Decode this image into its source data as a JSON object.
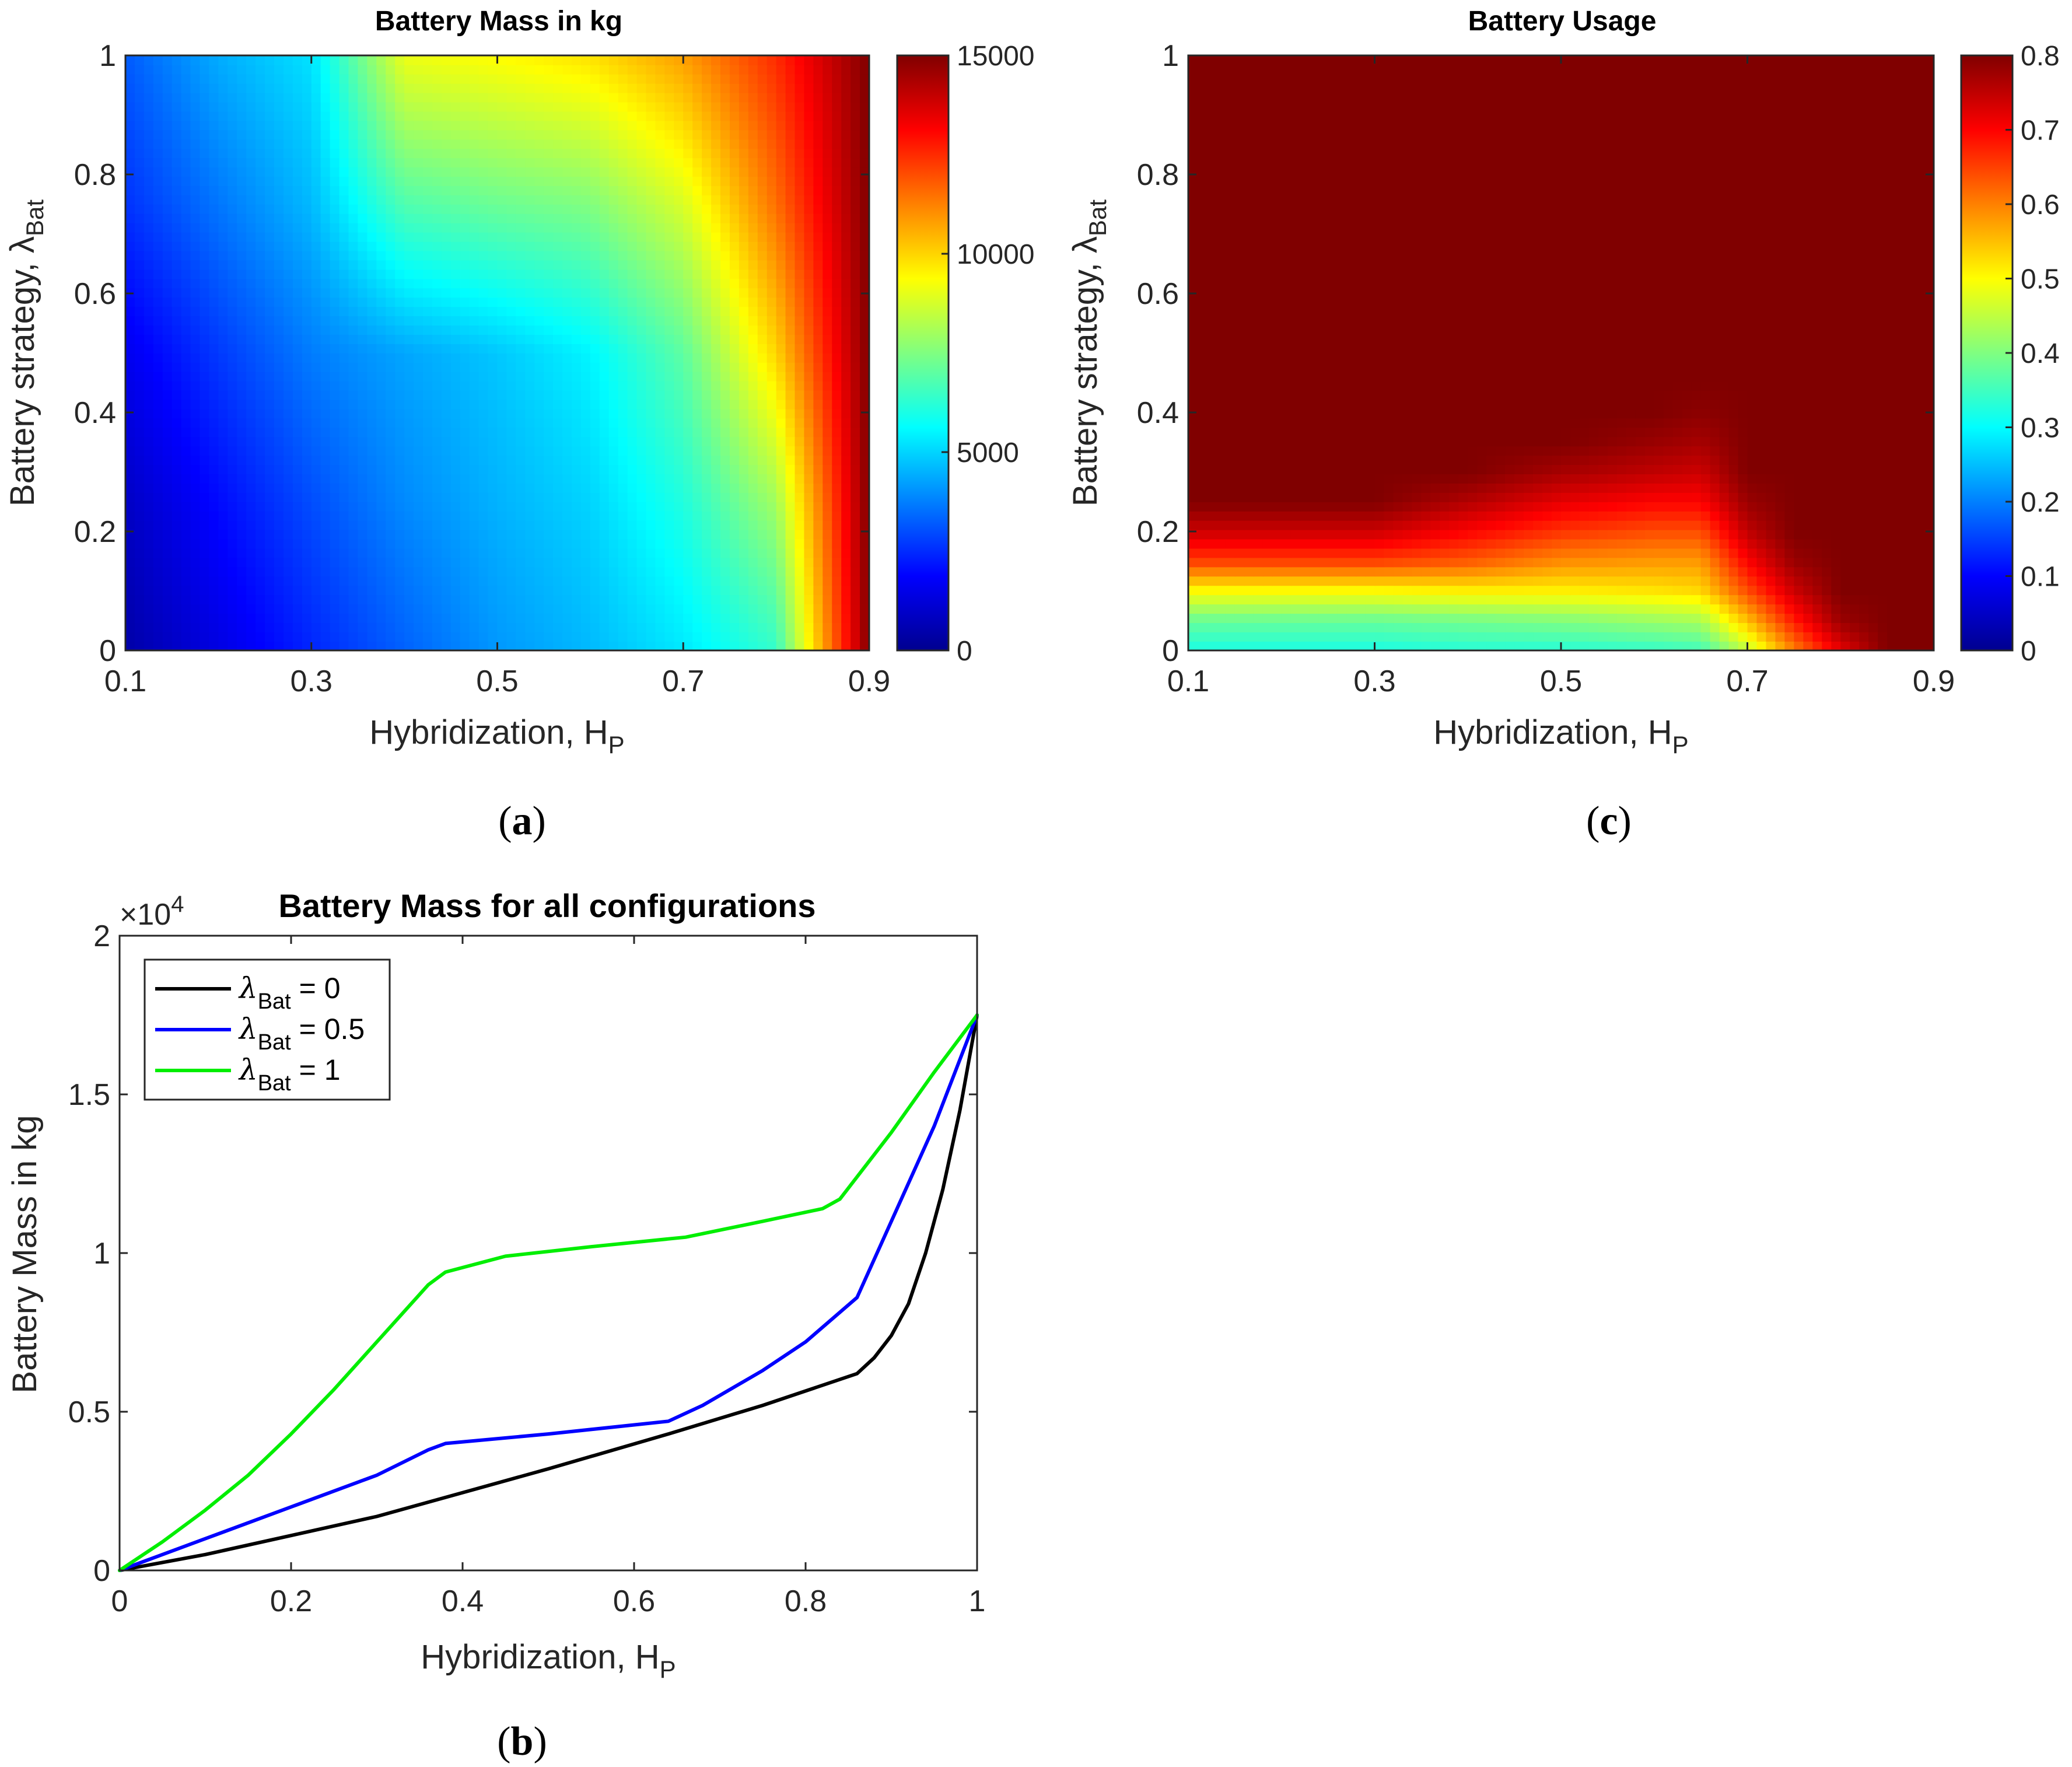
{
  "colorbar_colors": [
    "#00008f",
    "#0000ff",
    "#0080ff",
    "#00ffff",
    "#80ff80",
    "#ffff00",
    "#ff8000",
    "#ff0000",
    "#800000"
  ],
  "panel_a": {
    "label": "a",
    "chart_data": {
      "type": "heatmap",
      "title": "Battery Mass in kg",
      "xlabel": "Hybridization, H",
      "xlabel_sub": "P",
      "ylabel": "Battery strategy, λ",
      "ylabel_sub": "Bat",
      "xlim": [
        0.1,
        0.9
      ],
      "ylim": [
        0,
        1
      ],
      "xticks": [
        "0.1",
        "0.3",
        "0.5",
        "0.7",
        "0.9"
      ],
      "xtick_values": [
        0.1,
        0.3,
        0.5,
        0.7,
        0.9
      ],
      "yticks": [
        "0",
        "0.2",
        "0.4",
        "0.6",
        "0.8",
        "1"
      ],
      "ytick_values": [
        0,
        0.2,
        0.4,
        0.6,
        0.8,
        1
      ],
      "colorbar": {
        "min": 0,
        "max": 15000,
        "ticks": [
          "0",
          "5000",
          "10000",
          "15000"
        ],
        "tick_values": [
          0,
          5000,
          10000,
          15000
        ]
      },
      "x": [
        0.1,
        0.2,
        0.3,
        0.4,
        0.5,
        0.6,
        0.7,
        0.8,
        0.9
      ],
      "y": [
        0,
        0.25,
        0.5,
        0.75,
        1
      ],
      "z": [
        [
          400,
          1400,
          2400,
          3300,
          4100,
          4600,
          5300,
          6400,
          15000
        ],
        [
          900,
          2000,
          3000,
          3900,
          4500,
          5000,
          6100,
          8000,
          15000
        ],
        [
          1600,
          2700,
          3700,
          4300,
          4800,
          5500,
          7000,
          10000,
          15000
        ],
        [
          2600,
          3600,
          4600,
          6800,
          7200,
          7500,
          8800,
          11500,
          15000
        ],
        [
          3200,
          4400,
          5200,
          9100,
          9400,
          9800,
          10800,
          12500,
          15000
        ]
      ]
    }
  },
  "panel_c": {
    "label": "c",
    "chart_data": {
      "type": "heatmap",
      "title": "Battery Usage",
      "xlabel": "Hybridization, H",
      "xlabel_sub": "P",
      "ylabel": "Battery strategy, λ",
      "ylabel_sub": "Bat",
      "xlim": [
        0.1,
        0.9
      ],
      "ylim": [
        0,
        1
      ],
      "xticks": [
        "0.1",
        "0.3",
        "0.5",
        "0.7",
        "0.9"
      ],
      "xtick_values": [
        0.1,
        0.3,
        0.5,
        0.7,
        0.9
      ],
      "yticks": [
        "0",
        "0.2",
        "0.4",
        "0.6",
        "0.8",
        "1"
      ],
      "ytick_values": [
        0,
        0.2,
        0.4,
        0.6,
        0.8,
        1
      ],
      "colorbar": {
        "min": 0,
        "max": 0.8,
        "ticks": [
          "0",
          "0.1",
          "0.2",
          "0.3",
          "0.4",
          "0.5",
          "0.6",
          "0.7",
          "0.8"
        ],
        "tick_values": [
          0,
          0.1,
          0.2,
          0.3,
          0.4,
          0.5,
          0.6,
          0.7,
          0.8
        ]
      },
      "x": [
        0.1,
        0.2,
        0.3,
        0.4,
        0.5,
        0.6,
        0.65,
        0.7,
        0.75,
        0.8,
        0.85,
        0.9
      ],
      "y": [
        0,
        0.05,
        0.1,
        0.15,
        0.2,
        0.25,
        0.3,
        0.35,
        0.4,
        0.45,
        1
      ],
      "z": [
        [
          0.32,
          0.32,
          0.32,
          0.33,
          0.33,
          0.34,
          0.35,
          0.45,
          0.6,
          0.72,
          0.8,
          0.8
        ],
        [
          0.38,
          0.38,
          0.38,
          0.39,
          0.4,
          0.42,
          0.43,
          0.55,
          0.68,
          0.78,
          0.8,
          0.8
        ],
        [
          0.5,
          0.5,
          0.5,
          0.51,
          0.51,
          0.52,
          0.53,
          0.64,
          0.74,
          0.8,
          0.8,
          0.8
        ],
        [
          0.65,
          0.65,
          0.65,
          0.63,
          0.59,
          0.58,
          0.58,
          0.7,
          0.78,
          0.8,
          0.8,
          0.8
        ],
        [
          0.74,
          0.74,
          0.74,
          0.7,
          0.66,
          0.64,
          0.64,
          0.75,
          0.8,
          0.8,
          0.8,
          0.8
        ],
        [
          0.8,
          0.8,
          0.8,
          0.76,
          0.72,
          0.7,
          0.7,
          0.78,
          0.8,
          0.8,
          0.8,
          0.8
        ],
        [
          0.8,
          0.8,
          0.8,
          0.8,
          0.77,
          0.75,
          0.74,
          0.8,
          0.8,
          0.8,
          0.8,
          0.8
        ],
        [
          0.8,
          0.8,
          0.8,
          0.8,
          0.8,
          0.78,
          0.77,
          0.8,
          0.8,
          0.8,
          0.8,
          0.8
        ],
        [
          0.8,
          0.8,
          0.8,
          0.8,
          0.8,
          0.8,
          0.79,
          0.8,
          0.8,
          0.8,
          0.8,
          0.8
        ],
        [
          0.8,
          0.8,
          0.8,
          0.8,
          0.8,
          0.8,
          0.8,
          0.8,
          0.8,
          0.8,
          0.8,
          0.8
        ],
        [
          0.8,
          0.8,
          0.8,
          0.8,
          0.8,
          0.8,
          0.8,
          0.8,
          0.8,
          0.8,
          0.8,
          0.8
        ]
      ]
    }
  },
  "panel_b": {
    "label": "b",
    "chart_data": {
      "type": "line",
      "title": "Battery Mass for all configurations",
      "xlabel": "Hybridization, H",
      "xlabel_sub": "P",
      "ylabel": "Battery Mass in kg",
      "xlim": [
        0,
        1
      ],
      "ylim": [
        0,
        20000
      ],
      "xticks": [
        "0",
        "0.2",
        "0.4",
        "0.6",
        "0.8",
        "1"
      ],
      "xtick_values": [
        0,
        0.2,
        0.4,
        0.6,
        0.8,
        1
      ],
      "yticks": [
        "0",
        "0.5",
        "1",
        "1.5",
        "2"
      ],
      "ytick_values": [
        0,
        5000,
        10000,
        15000,
        20000
      ],
      "exponent_base": "×10",
      "exponent_power": "4",
      "legend_position": "top-left",
      "series": [
        {
          "name": "λBat = 0",
          "label_lambda": "λ",
          "label_sub": "Bat",
          "label_rest": " = 0",
          "color": "#000000",
          "x": [
            0,
            0.1,
            0.2,
            0.3,
            0.38,
            0.5,
            0.64,
            0.75,
            0.86,
            0.88,
            0.9,
            0.92,
            0.94,
            0.96,
            0.98,
            1.0
          ],
          "y": [
            0,
            500,
            1100,
            1700,
            2300,
            3200,
            4300,
            5200,
            6200,
            6700,
            7400,
            8400,
            10000,
            12000,
            14500,
            17500
          ]
        },
        {
          "name": "λBat = 0.5",
          "label_lambda": "λ",
          "label_sub": "Bat",
          "label_rest": " = 0.5",
          "color": "#0000ff",
          "x": [
            0,
            0.1,
            0.2,
            0.3,
            0.36,
            0.38,
            0.5,
            0.64,
            0.68,
            0.75,
            0.8,
            0.86,
            0.9,
            0.95,
            1.0
          ],
          "y": [
            0,
            1000,
            2000,
            3000,
            3800,
            4000,
            4300,
            4700,
            5200,
            6300,
            7200,
            8600,
            11000,
            14000,
            17500
          ]
        },
        {
          "name": "λBat = 1",
          "label_lambda": "λ",
          "label_sub": "Bat",
          "label_rest": " = 1",
          "color": "#00ee00",
          "x": [
            0,
            0.05,
            0.1,
            0.15,
            0.2,
            0.25,
            0.3,
            0.36,
            0.38,
            0.45,
            0.55,
            0.66,
            0.75,
            0.82,
            0.84,
            0.9,
            0.95,
            1.0
          ],
          "y": [
            0,
            900,
            1900,
            3000,
            4300,
            5700,
            7200,
            9000,
            9400,
            9900,
            10200,
            10500,
            11000,
            11400,
            11700,
            13800,
            15700,
            17500
          ]
        }
      ]
    }
  }
}
